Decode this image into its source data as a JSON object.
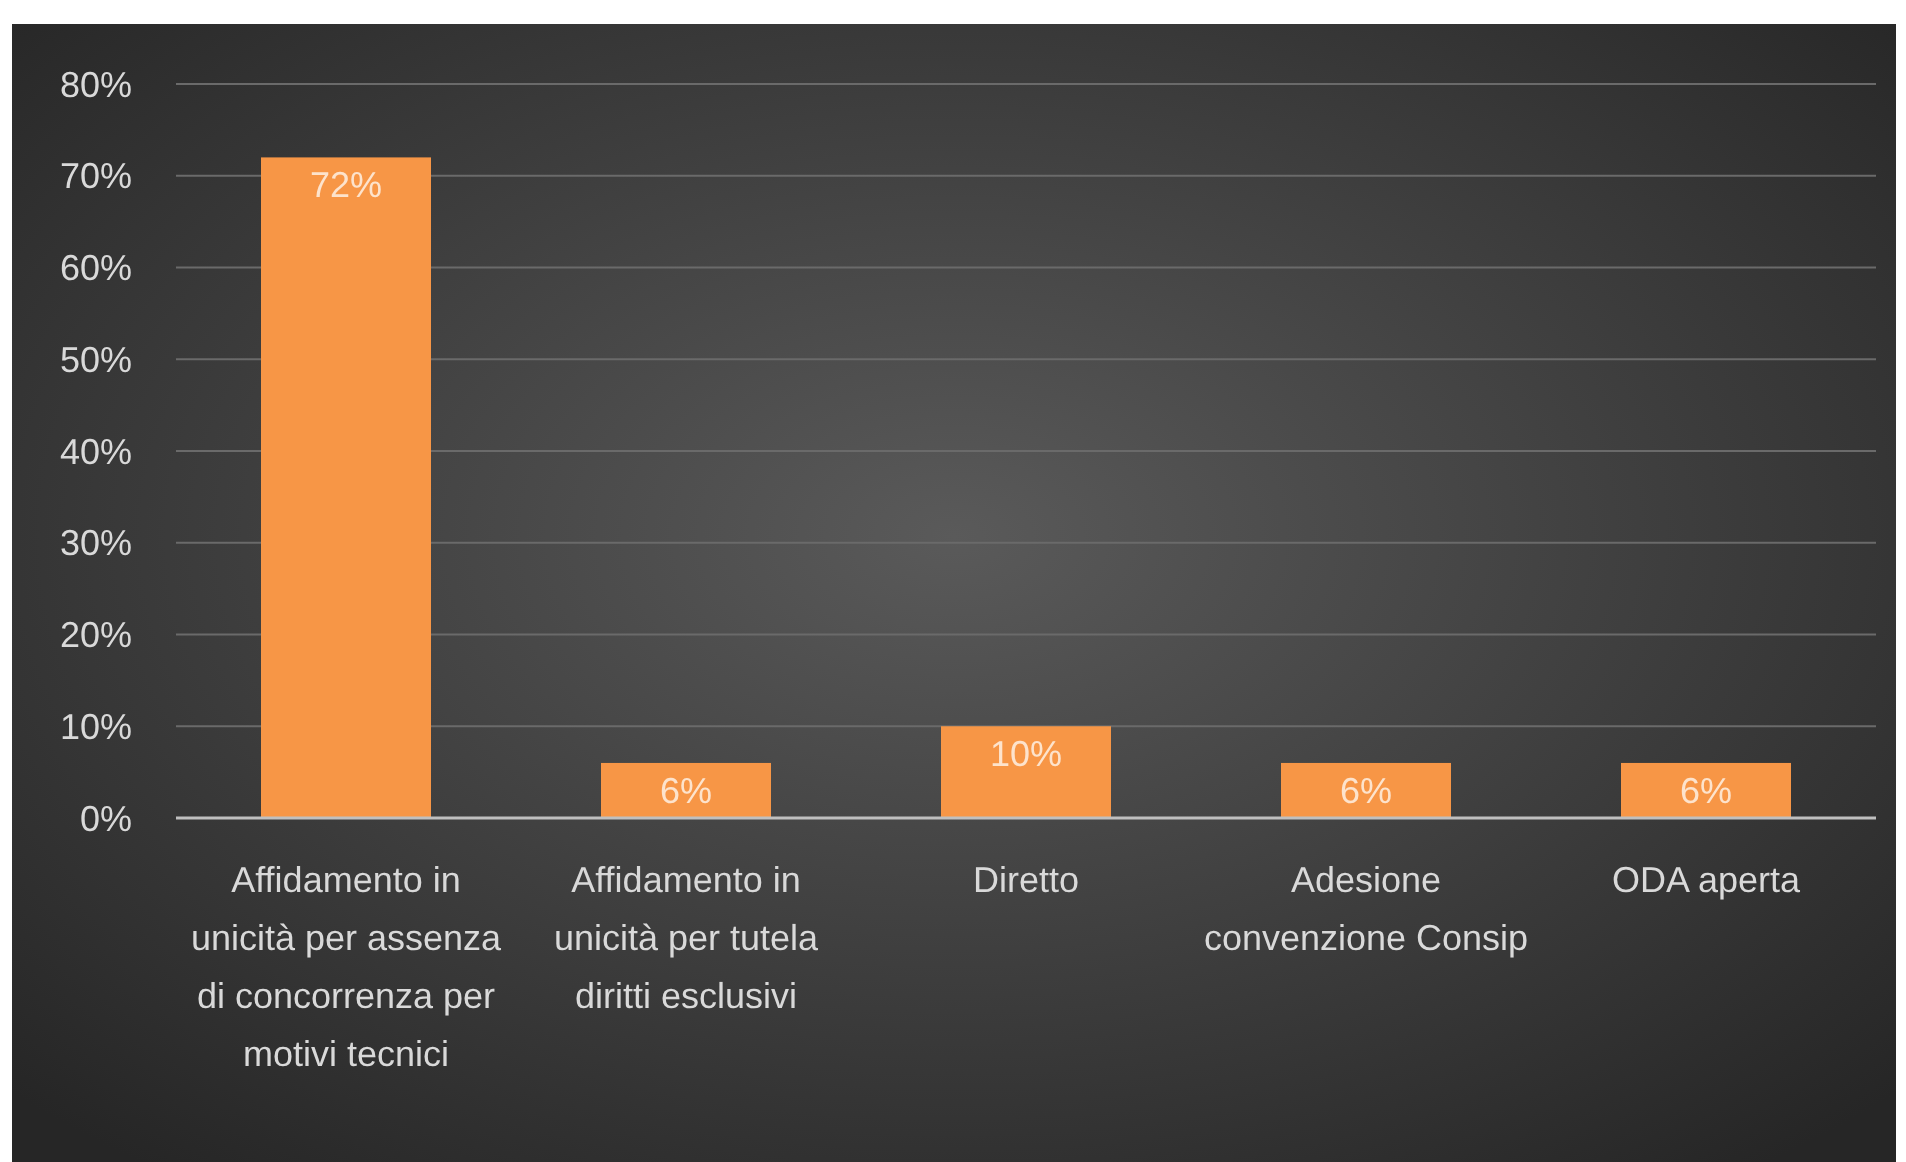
{
  "chart_data": {
    "type": "bar",
    "categories": [
      "Affidamento in unicità per assenza di concorrenza per motivi tecnici",
      "Affidamento in unicità per tutela diritti esclusivi",
      "Diretto",
      "Adesione convenzione Consip",
      "ODA aperta"
    ],
    "values": [
      72,
      6,
      10,
      6,
      6
    ],
    "value_labels": [
      "72%",
      "6%",
      "10%",
      "6%",
      "6%"
    ],
    "color": "#f79646",
    "ylim": [
      0,
      80
    ],
    "yticks": [
      {
        "value": 0,
        "label": "0%"
      },
      {
        "value": 10,
        "label": "10%"
      },
      {
        "value": 20,
        "label": "20%"
      },
      {
        "value": 30,
        "label": "30%"
      },
      {
        "value": 40,
        "label": "40%"
      },
      {
        "value": 50,
        "label": "50%"
      },
      {
        "value": 60,
        "label": "60%"
      },
      {
        "value": 70,
        "label": "70%"
      },
      {
        "value": 80,
        "label": "80%"
      }
    ],
    "grid": "y"
  }
}
